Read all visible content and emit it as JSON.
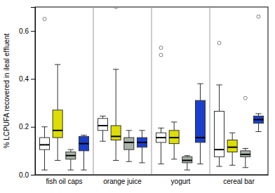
{
  "chart_data": {
    "type": "box",
    "ylabel": "% LCPUFA recovered in ileal effluent",
    "categories": [
      "fish oil caps",
      "orange juice",
      "yogurt",
      "cereal bar"
    ],
    "ylim": [
      0.0,
      0.7
    ],
    "yticks": [
      {
        "value": 0.0,
        "label": "0.0"
      },
      0.2,
      0.4,
      0.6
    ],
    "series": [
      {
        "color": "white",
        "values": [
          {
            "q1": 0.105,
            "median": 0.125,
            "q3": 0.155,
            "whislo": 0.02,
            "whishi": 0.2,
            "fliers": [
              0.65
            ]
          },
          {
            "q1": 0.185,
            "median": 0.205,
            "q3": 0.235,
            "whislo": 0.14,
            "whishi": 0.245,
            "fliers": []
          },
          {
            "q1": 0.135,
            "median": 0.155,
            "q3": 0.175,
            "whislo": 0.045,
            "whishi": 0.195,
            "fliers": [
              0.5,
              0.53
            ]
          },
          {
            "q1": 0.075,
            "median": 0.105,
            "q3": 0.265,
            "whislo": 0.035,
            "whishi": 0.375,
            "fliers": [
              0.55
            ]
          }
        ]
      },
      {
        "color": "#dddd00",
        "values": [
          {
            "q1": 0.155,
            "median": 0.185,
            "q3": 0.27,
            "whislo": 0.06,
            "whishi": 0.46,
            "fliers": []
          },
          {
            "q1": 0.145,
            "median": 0.16,
            "q3": 0.205,
            "whislo": 0.06,
            "whishi": 0.44,
            "fliers": [
              0.7
            ]
          },
          {
            "q1": 0.13,
            "median": 0.155,
            "q3": 0.185,
            "whislo": 0.065,
            "whishi": 0.22,
            "fliers": []
          },
          {
            "q1": 0.095,
            "median": 0.115,
            "q3": 0.145,
            "whislo": 0.04,
            "whishi": 0.175,
            "fliers": []
          }
        ]
      },
      {
        "color": "#a8b4a8",
        "values": [
          {
            "q1": 0.065,
            "median": 0.08,
            "q3": 0.095,
            "whislo": 0.02,
            "whishi": 0.105,
            "fliers": []
          },
          {
            "q1": 0.105,
            "median": 0.135,
            "q3": 0.155,
            "whislo": 0.055,
            "whishi": 0.185,
            "fliers": []
          },
          {
            "q1": 0.05,
            "median": 0.06,
            "q3": 0.075,
            "whislo": 0.02,
            "whishi": 0.08,
            "fliers": []
          },
          {
            "q1": 0.075,
            "median": 0.085,
            "q3": 0.1,
            "whislo": 0.03,
            "whishi": 0.11,
            "fliers": [
              0.32
            ]
          }
        ]
      },
      {
        "color": "#1a3fcc",
        "values": [
          {
            "q1": 0.1,
            "median": 0.13,
            "q3": 0.16,
            "whislo": 0.02,
            "whishi": 0.165,
            "fliers": []
          },
          {
            "q1": 0.115,
            "median": 0.135,
            "q3": 0.155,
            "whislo": 0.05,
            "whishi": 0.185,
            "fliers": []
          },
          {
            "q1": 0.135,
            "median": 0.155,
            "q3": 0.31,
            "whislo": 0.045,
            "whishi": 0.38,
            "fliers": []
          },
          {
            "q1": 0.215,
            "median": 0.23,
            "q3": 0.245,
            "whislo": 0.18,
            "whishi": 0.255,
            "fliers": [
              0.66
            ]
          }
        ]
      }
    ]
  }
}
